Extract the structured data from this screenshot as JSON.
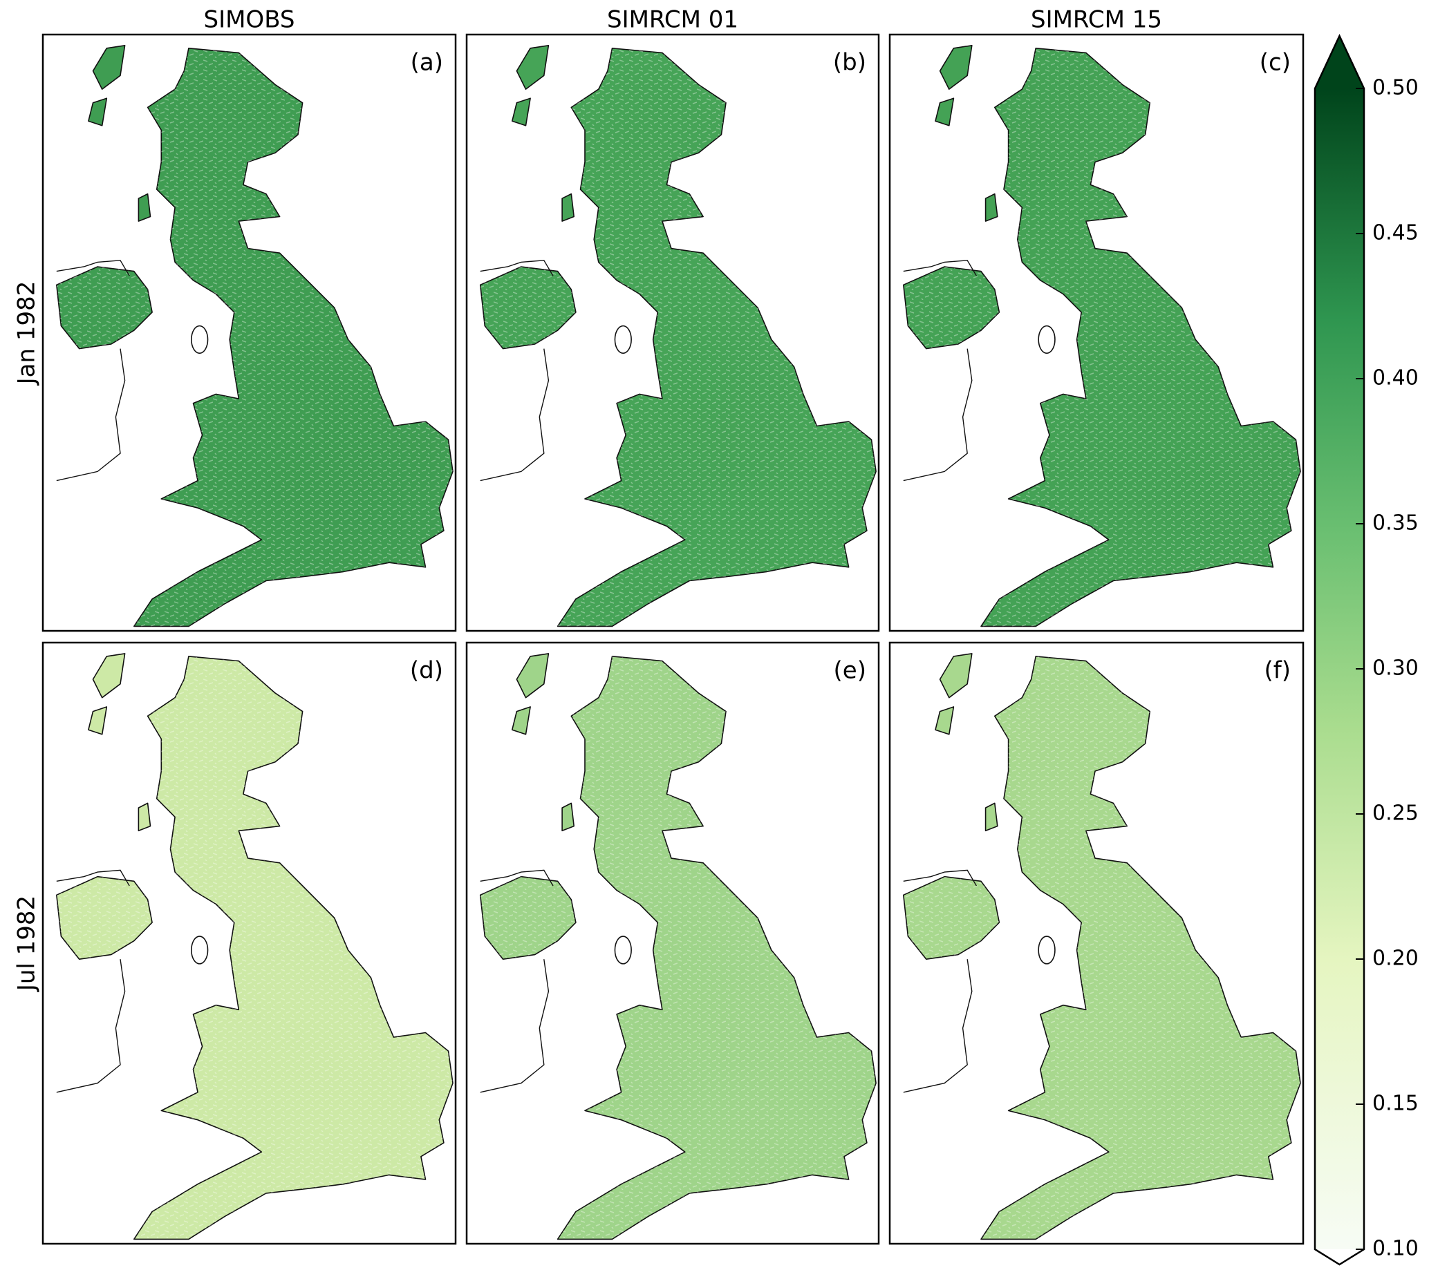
{
  "column_titles": [
    "SIMOBS",
    "SIMRCM 01",
    "SIMRCM 15"
  ],
  "row_labels": [
    "Jan 1982",
    "Jul 1982"
  ],
  "panels": [
    {
      "label": "(a)"
    },
    {
      "label": "(b)"
    },
    {
      "label": "(c)"
    },
    {
      "label": "(d)"
    },
    {
      "label": "(e)"
    },
    {
      "label": "(f)"
    }
  ],
  "colorbar": {
    "colormap": "Greens",
    "limits": [
      0.1,
      0.5
    ],
    "ticks": [
      {
        "value": 0.1,
        "label": "0.10"
      },
      {
        "value": 0.15,
        "label": "0.15"
      },
      {
        "value": 0.2,
        "label": "0.20"
      },
      {
        "value": 0.25,
        "label": "0.25"
      },
      {
        "value": 0.3,
        "label": "0.30"
      },
      {
        "value": 0.35,
        "label": "0.35"
      },
      {
        "value": 0.4,
        "label": "0.40"
      },
      {
        "value": 0.45,
        "label": "0.45"
      },
      {
        "value": 0.5,
        "label": "0.50"
      }
    ]
  }
}
